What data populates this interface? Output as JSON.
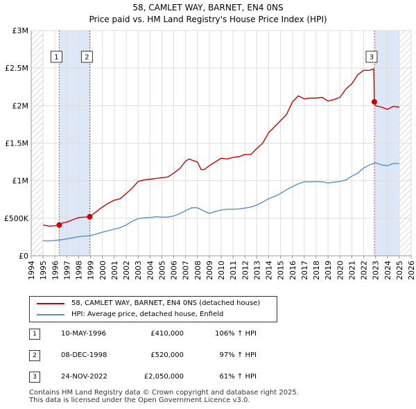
{
  "chart_data": {
    "type": "line",
    "title": "58, CAMLET WAY, BARNET, EN4 0NS",
    "subtitle": "Price paid vs. HM Land Registry's House Price Index (HPI)",
    "xlabel": "",
    "ylabel": "",
    "xlim": [
      1994,
      2026
    ],
    "ylim": [
      0,
      3000000
    ],
    "y_ticks": [
      {
        "value": 0,
        "label": "£0"
      },
      {
        "value": 500000,
        "label": "£500K"
      },
      {
        "value": 1000000,
        "label": "£1M"
      },
      {
        "value": 1500000,
        "label": "£1.5M"
      },
      {
        "value": 2000000,
        "label": "£2M"
      },
      {
        "value": 2500000,
        "label": "£2.5M"
      },
      {
        "value": 3000000,
        "label": "£3M"
      }
    ],
    "x_ticks": [
      "1994",
      "1995",
      "1996",
      "1997",
      "1998",
      "1999",
      "2000",
      "2001",
      "2002",
      "2003",
      "2004",
      "2005",
      "2006",
      "2007",
      "2008",
      "2009",
      "2010",
      "2011",
      "2012",
      "2013",
      "2014",
      "2015",
      "2016",
      "2017",
      "2018",
      "2019",
      "2020",
      "2021",
      "2022",
      "2023",
      "2024",
      "2025",
      "2026"
    ],
    "grid": true,
    "colors": {
      "property": "#cc0000",
      "hpi": "#5b8fcb",
      "shade": "#dde7f5",
      "grid": "#dddddd",
      "vline": "#dd4444"
    },
    "series": [
      {
        "name": "58, CAMLET WAY, BARNET, EN4 0NS (detached house)",
        "color": "#cc0000",
        "x": [
          1995.0,
          1995.5,
          1996.0,
          1996.36,
          1996.7,
          1997.0,
          1997.5,
          1998.0,
          1998.5,
          1998.93,
          1999.5,
          2000.0,
          2000.5,
          2001.0,
          2001.5,
          2002.0,
          2002.5,
          2003.0,
          2003.5,
          2004.0,
          2004.5,
          2005.0,
          2005.5,
          2006.0,
          2006.5,
          2007.0,
          2007.3,
          2007.6,
          2008.0,
          2008.3,
          2008.6,
          2009.0,
          2009.5,
          2010.0,
          2010.5,
          2011.0,
          2011.5,
          2012.0,
          2012.5,
          2013.0,
          2013.5,
          2014.0,
          2014.5,
          2015.0,
          2015.5,
          2016.0,
          2016.5,
          2017.0,
          2017.5,
          2018.0,
          2018.5,
          2019.0,
          2019.5,
          2020.0,
          2020.5,
          2021.0,
          2021.5,
          2022.0,
          2022.5,
          2022.85,
          2022.9,
          2023.0,
          2023.5,
          2024.0,
          2024.5,
          2025.0
        ],
        "values": [
          410000,
          395000,
          400000,
          410000,
          440000,
          450000,
          480000,
          510000,
          515000,
          520000,
          590000,
          650000,
          700000,
          740000,
          760000,
          830000,
          900000,
          990000,
          1010000,
          1020000,
          1030000,
          1040000,
          1050000,
          1100000,
          1160000,
          1260000,
          1290000,
          1270000,
          1250000,
          1150000,
          1150000,
          1200000,
          1250000,
          1300000,
          1290000,
          1310000,
          1320000,
          1350000,
          1350000,
          1430000,
          1500000,
          1640000,
          1720000,
          1800000,
          1880000,
          2050000,
          2130000,
          2090000,
          2100000,
          2100000,
          2110000,
          2060000,
          2080000,
          2110000,
          2220000,
          2290000,
          2410000,
          2470000,
          2470000,
          2490000,
          2050000,
          2000000,
          1980000,
          1950000,
          1990000,
          1980000
        ]
      },
      {
        "name": "HPI: Average price, detached house, Enfield",
        "color": "#5b8fcb",
        "x": [
          1995.0,
          1995.5,
          1996.0,
          1996.5,
          1997.0,
          1997.5,
          1998.0,
          1998.5,
          1999.0,
          1999.5,
          2000.0,
          2000.5,
          2001.0,
          2001.5,
          2002.0,
          2002.5,
          2003.0,
          2003.5,
          2004.0,
          2004.5,
          2005.0,
          2005.5,
          2006.0,
          2006.5,
          2007.0,
          2007.5,
          2008.0,
          2008.5,
          2009.0,
          2009.5,
          2010.0,
          2010.5,
          2011.0,
          2011.5,
          2012.0,
          2012.5,
          2013.0,
          2013.5,
          2014.0,
          2014.5,
          2015.0,
          2015.5,
          2016.0,
          2016.5,
          2017.0,
          2017.5,
          2018.0,
          2018.5,
          2019.0,
          2019.5,
          2020.0,
          2020.5,
          2021.0,
          2021.5,
          2022.0,
          2022.5,
          2023.0,
          2023.5,
          2024.0,
          2024.5,
          2025.0
        ],
        "values": [
          200000,
          198000,
          205000,
          212000,
          225000,
          240000,
          255000,
          262000,
          270000,
          290000,
          315000,
          335000,
          355000,
          375000,
          410000,
          460000,
          495000,
          505000,
          510000,
          520000,
          515000,
          515000,
          530000,
          560000,
          600000,
          640000,
          640000,
          600000,
          565000,
          590000,
          610000,
          620000,
          620000,
          625000,
          635000,
          650000,
          675000,
          715000,
          760000,
          790000,
          830000,
          880000,
          920000,
          960000,
          985000,
          985000,
          990000,
          985000,
          970000,
          980000,
          990000,
          1010000,
          1060000,
          1100000,
          1170000,
          1210000,
          1240000,
          1210000,
          1200000,
          1230000,
          1230000
        ]
      }
    ],
    "transactions": [
      {
        "num": "1",
        "date": "10-MAY-1996",
        "x": 1996.36,
        "price": 410000,
        "price_label": "£410,000",
        "pct": "106% ↑ HPI"
      },
      {
        "num": "2",
        "date": "08-DEC-1998",
        "x": 1998.93,
        "price": 520000,
        "price_label": "£520,000",
        "pct": "97% ↑ HPI"
      },
      {
        "num": "3",
        "date": "24-NOV-2022",
        "x": 2022.9,
        "price": 2050000,
        "price_label": "£2,050,000",
        "pct": "61% ↑ HPI"
      }
    ],
    "marker_label_value": 2650000,
    "shaded_regions": [
      [
        1996.36,
        1998.93
      ],
      [
        2022.9,
        2025.0
      ]
    ],
    "hatched_regions": [
      [
        1994,
        1995
      ],
      [
        2025,
        2026
      ]
    ],
    "legend_position": "below"
  },
  "footer": {
    "line1": "Contains HM Land Registry data © Crown copyright and database right 2025.",
    "line2": "This data is licensed under the Open Government Licence v3.0."
  }
}
